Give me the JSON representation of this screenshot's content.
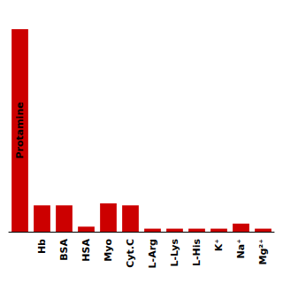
{
  "chart_data": {
    "type": "bar",
    "categories": [
      null,
      "Hb",
      "BSA",
      "HSA",
      "Myo",
      "Cyt.C",
      "L-Arg",
      "L-Lys",
      "L-His",
      "K⁺",
      "Na⁺",
      "Mg²⁺"
    ],
    "values": [
      100,
      13,
      13,
      2.5,
      14,
      13,
      1.5,
      1.5,
      1.5,
      1.5,
      4,
      1.5
    ],
    "color": "#cc0000",
    "ylim": [
      0,
      110
    ],
    "grid": false,
    "tick_labels": "x",
    "annotations": [
      {
        "text": "Protamine",
        "x": 0,
        "y": 50
      }
    ]
  }
}
